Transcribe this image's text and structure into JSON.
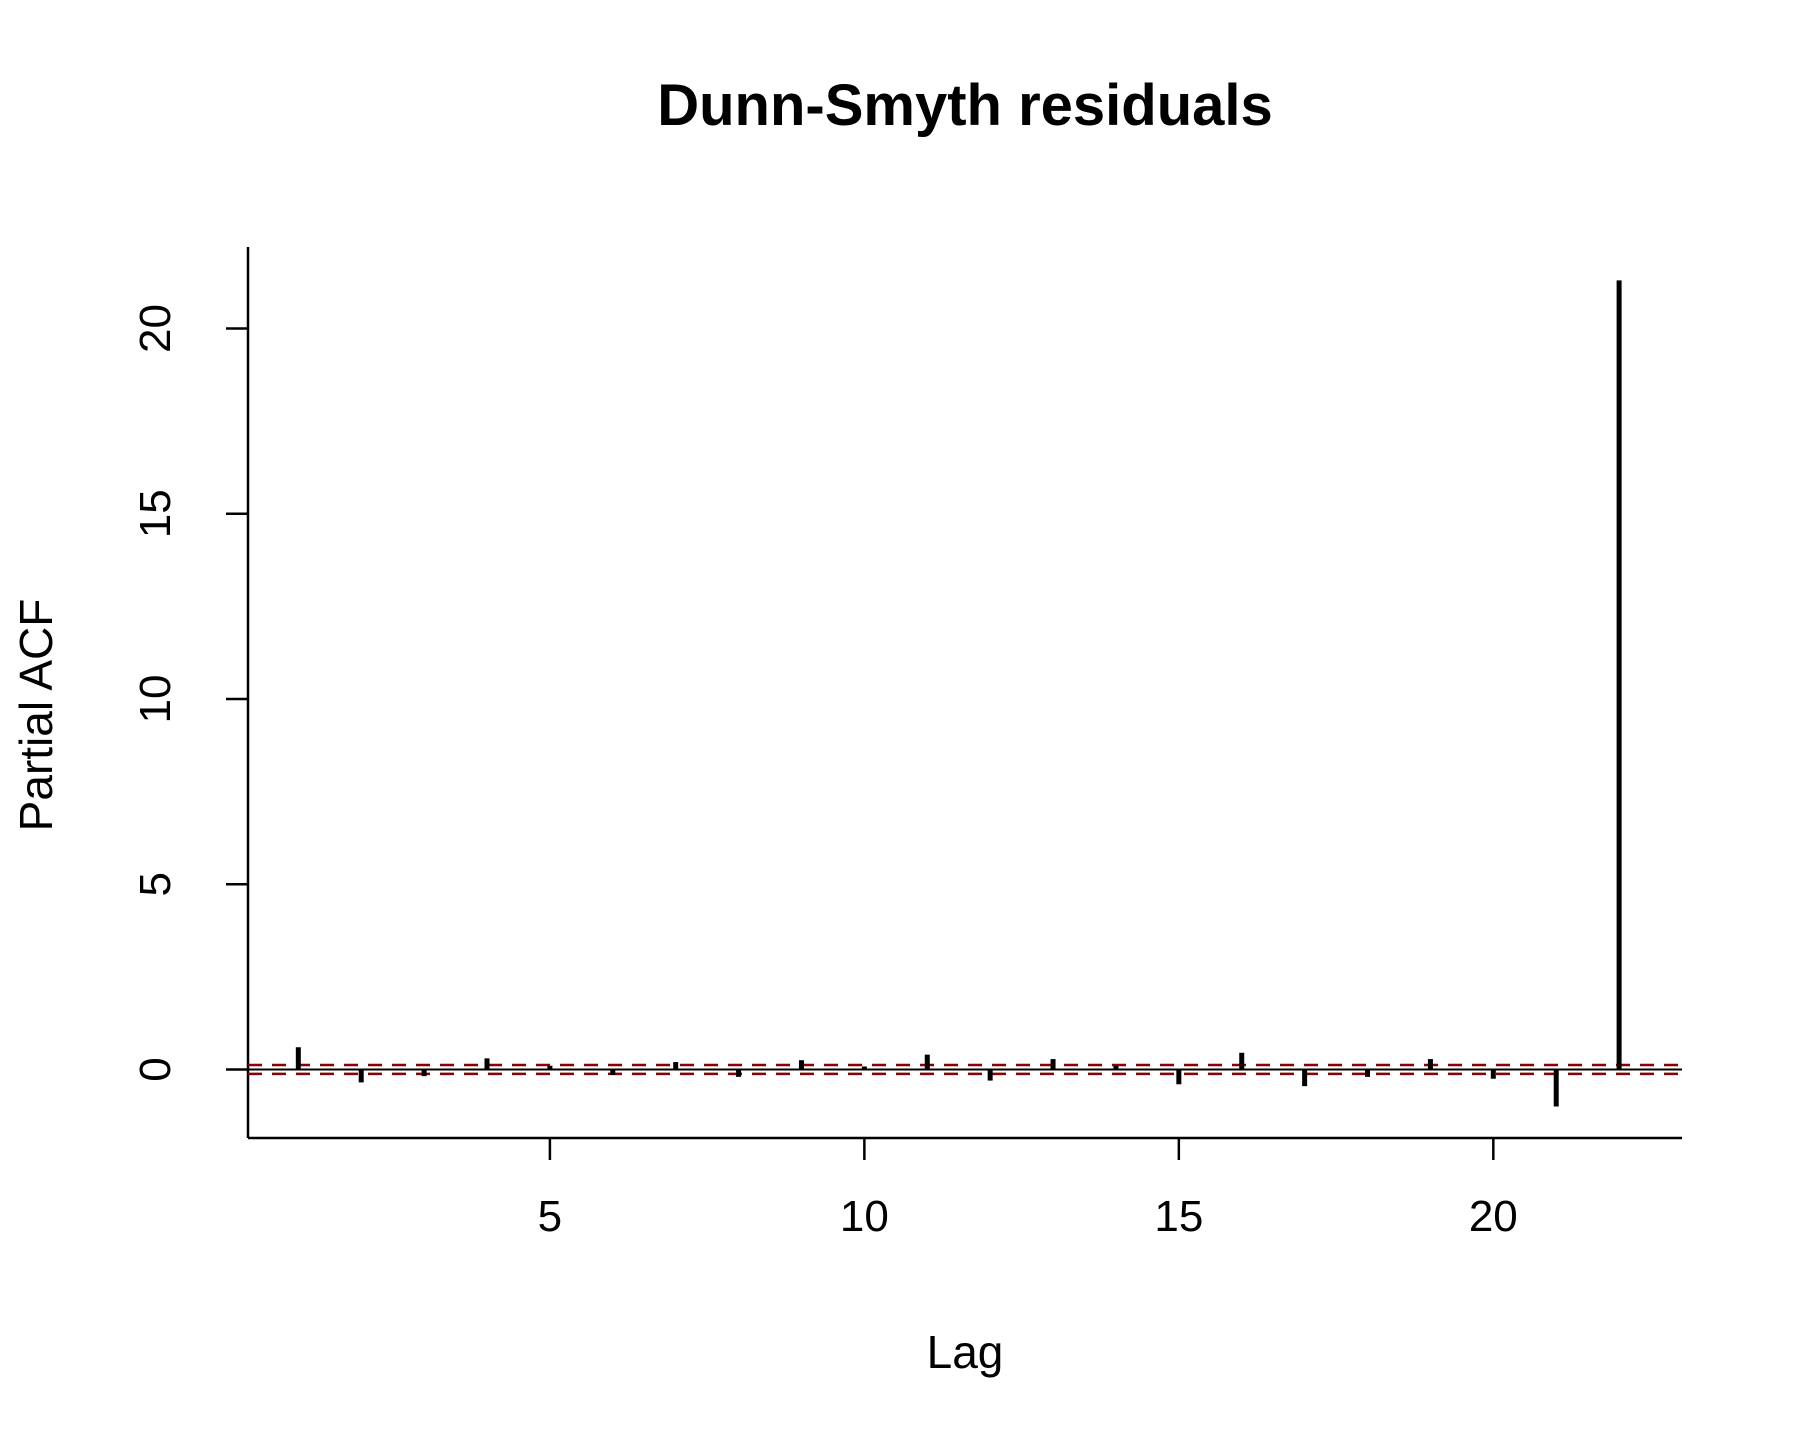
{
  "chart_data": {
    "type": "bar",
    "title": "Dunn-Smyth residuals",
    "xlabel": "Lag",
    "ylabel": "Partial ACF",
    "x_ticks": [
      5,
      10,
      15,
      20
    ],
    "y_ticks": [
      0,
      5,
      10,
      15,
      20
    ],
    "xlim": [
      0.2,
      23.0
    ],
    "ylim": [
      -1.85,
      22.2
    ],
    "confidence_bound": 0.12,
    "colors": {
      "bars": "#000000",
      "bounds": "#8b0000",
      "zero_line": "#000000"
    },
    "grid": false,
    "series": [
      {
        "lags": [
          1,
          2,
          3,
          4,
          5,
          6,
          7,
          8,
          9,
          10,
          11,
          12,
          13,
          14,
          15,
          16,
          17,
          18,
          19,
          20,
          21,
          22
        ],
        "values": [
          0.6,
          -0.35,
          -0.18,
          0.3,
          0.1,
          -0.15,
          0.2,
          -0.2,
          0.25,
          0.08,
          0.4,
          -0.3,
          0.28,
          0.1,
          -0.4,
          0.45,
          -0.45,
          -0.2,
          0.28,
          -0.25,
          -1.0,
          21.3
        ]
      }
    ]
  }
}
